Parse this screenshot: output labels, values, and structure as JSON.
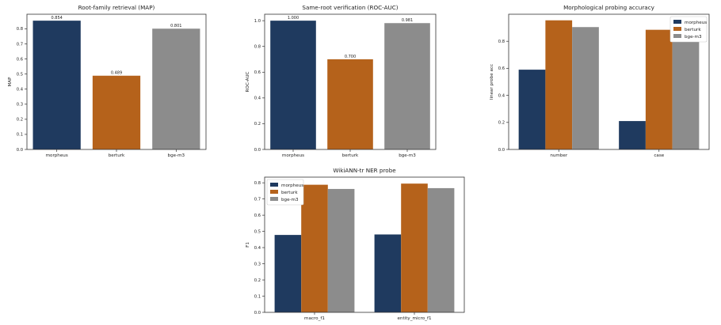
{
  "colors": {
    "morpheus": "#1f3a5f",
    "berturk": "#b5621b",
    "bge-m3": "#8c8c8c",
    "axis": "#333333"
  },
  "chart_data": [
    {
      "id": "root-map",
      "type": "bar",
      "title": "Root-family retrieval (MAP)",
      "xlabel": "",
      "ylabel": "MAP",
      "categories": [
        "morpheus",
        "berturk",
        "bge-m3"
      ],
      "values": [
        0.854,
        0.489,
        0.801
      ],
      "value_labels": [
        "0.854",
        "0.489",
        "0.801"
      ],
      "ylim": [
        0,
        0.8967
      ],
      "yticks": [
        0.0,
        0.1,
        0.2,
        0.3,
        0.4,
        0.5,
        0.6,
        0.7,
        0.8
      ],
      "ytick_labels": [
        "0.0",
        "0.1",
        "0.2",
        "0.3",
        "0.4",
        "0.5",
        "0.6",
        "0.7",
        "0.8"
      ],
      "grid": false
    },
    {
      "id": "root-auc",
      "type": "bar",
      "title": "Same-root verification (ROC-AUC)",
      "xlabel": "",
      "ylabel": "ROC-AUC",
      "categories": [
        "morpheus",
        "berturk",
        "bge-m3"
      ],
      "values": [
        1.0,
        0.7,
        0.981
      ],
      "value_labels": [
        "1.000",
        "0.700",
        "0.981"
      ],
      "ylim": [
        0,
        1.05
      ],
      "yticks": [
        0.0,
        0.2,
        0.4,
        0.6,
        0.8,
        1.0
      ],
      "ytick_labels": [
        "0.0",
        "0.2",
        "0.4",
        "0.6",
        "0.8",
        "1.0"
      ],
      "grid": false
    },
    {
      "id": "morph-probe",
      "type": "bar",
      "title": "Morphological probing accuracy",
      "xlabel": "",
      "ylabel": "linear probe acc",
      "categories": [
        "number",
        "case"
      ],
      "series": [
        {
          "name": "morpheus",
          "values": [
            0.59,
            0.21
          ]
        },
        {
          "name": "berturk",
          "values": [
            0.955,
            0.885
          ]
        },
        {
          "name": "bge-m3",
          "values": [
            0.905,
            0.81
          ]
        }
      ],
      "ylim": [
        0,
        1.0
      ],
      "yticks": [
        0.0,
        0.2,
        0.4,
        0.6,
        0.8
      ],
      "ytick_labels": [
        "0.0",
        "0.2",
        "0.4",
        "0.6",
        "0.8"
      ],
      "legend": "top-right",
      "grid": false
    },
    {
      "id": "ner-probe",
      "type": "bar",
      "title": "WikiANN-tr NER probe",
      "xlabel": "",
      "ylabel": "F1",
      "categories": [
        "macro_f1",
        "entity_micro_f1"
      ],
      "series": [
        {
          "name": "morpheus",
          "values": [
            0.478,
            0.481
          ]
        },
        {
          "name": "berturk",
          "values": [
            0.788,
            0.795
          ]
        },
        {
          "name": "bge-m3",
          "values": [
            0.762,
            0.767
          ]
        }
      ],
      "ylim": [
        0,
        0.835
      ],
      "yticks": [
        0.0,
        0.1,
        0.2,
        0.3,
        0.4,
        0.5,
        0.6,
        0.7,
        0.8
      ],
      "ytick_labels": [
        "0.0",
        "0.1",
        "0.2",
        "0.3",
        "0.4",
        "0.5",
        "0.6",
        "0.7",
        "0.8"
      ],
      "legend": "top-left",
      "grid": false
    }
  ]
}
